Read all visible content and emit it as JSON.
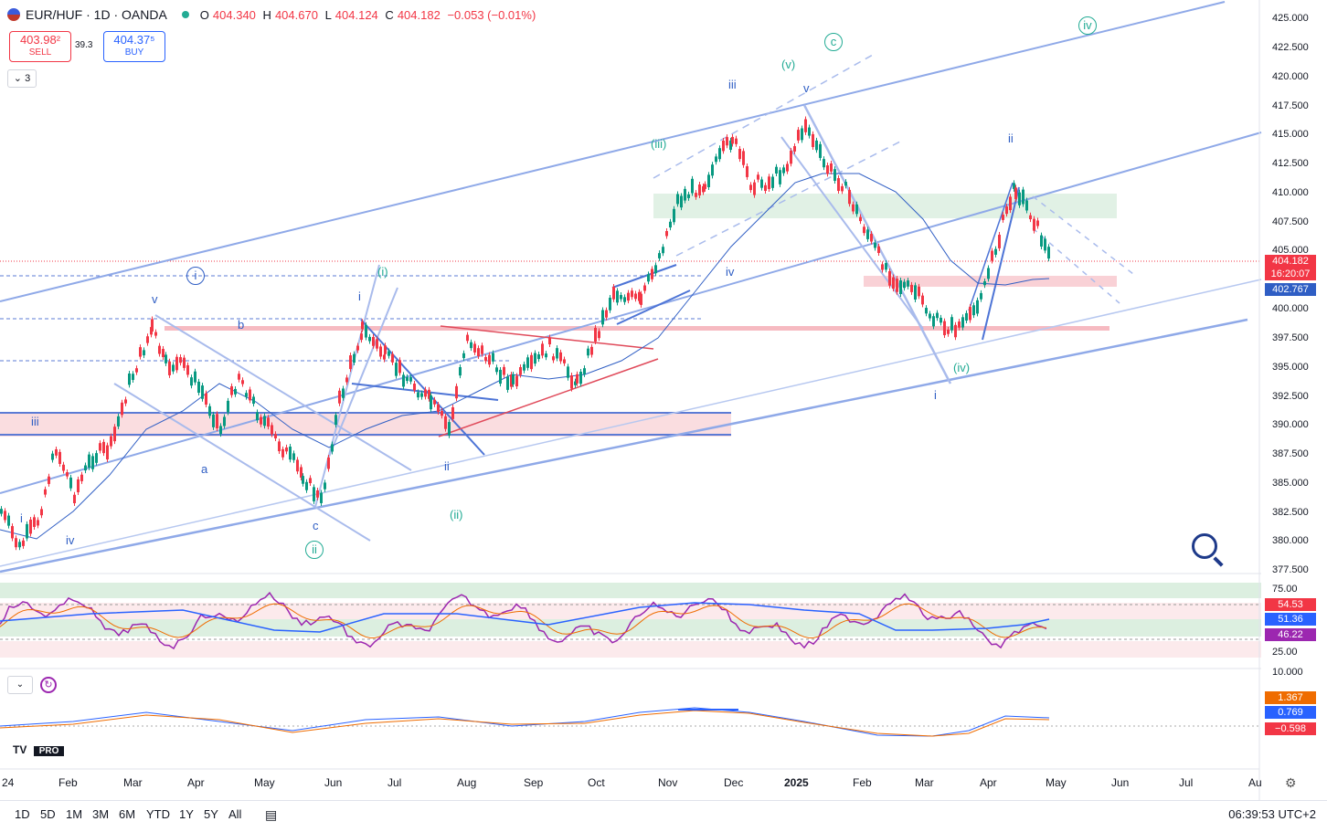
{
  "header": {
    "symbol": "EUR/HUF · 1D · OANDA",
    "ohlc": [
      {
        "k": "O",
        "v": "404.340"
      },
      {
        "k": "H",
        "v": "404.670"
      },
      {
        "k": "L",
        "v": "404.124"
      },
      {
        "k": "C",
        "v": "404.182"
      }
    ],
    "change": "−0.053 (−0.01%)"
  },
  "trade": {
    "sell_price": "403.98²",
    "sell_label": "SELL",
    "spread": "39.3",
    "buy_price": "404.37⁵",
    "buy_label": "BUY"
  },
  "indicator_count": "3",
  "price_axis": {
    "labels": [
      "425.000",
      "422.500",
      "420.000",
      "417.500",
      "415.000",
      "412.500",
      "410.000",
      "407.500",
      "405.000",
      "400.000",
      "397.500",
      "395.000",
      "392.500",
      "390.000",
      "387.500",
      "385.000",
      "382.500",
      "380.000",
      "377.500"
    ],
    "last_price": "404.182",
    "countdown": "16:20:07",
    "ma_value": "402.767"
  },
  "rsi_axis": {
    "labels": [
      "75.00",
      "25.00",
      "10.000"
    ],
    "badges": [
      "54.53",
      "51.36",
      "46.22"
    ]
  },
  "macd_axis": {
    "badges": [
      "1.367",
      "0.769",
      "−0.598"
    ]
  },
  "time_axis": [
    "24",
    "Feb",
    "Mar",
    "Apr",
    "May",
    "Jun",
    "Jul",
    "Aug",
    "Sep",
    "Oct",
    "Nov",
    "Dec",
    "2025",
    "Feb",
    "Mar",
    "Apr",
    "May",
    "Jun",
    "Jul",
    "Au"
  ],
  "wave_labels": [
    "i",
    "iv",
    "iii",
    "v",
    "a",
    "b",
    "c",
    "ii",
    "i",
    "ii",
    "i",
    "(i)",
    "(ii)",
    "iii",
    "iv",
    "v",
    "(iii)",
    "(v)",
    "c",
    "i",
    "(iv)",
    "ii",
    "iv"
  ],
  "timeframes": [
    "1D",
    "5D",
    "1M",
    "3M",
    "6M",
    "YTD",
    "1Y",
    "5Y",
    "All"
  ],
  "clock": "06:39:53 UTC+2",
  "logo_text": "PRO",
  "colors": {
    "up": "#089981",
    "down": "#f23645",
    "channel": "#8fa9e8",
    "rsi": "#9c27b0",
    "accent": "#2962ff"
  }
}
